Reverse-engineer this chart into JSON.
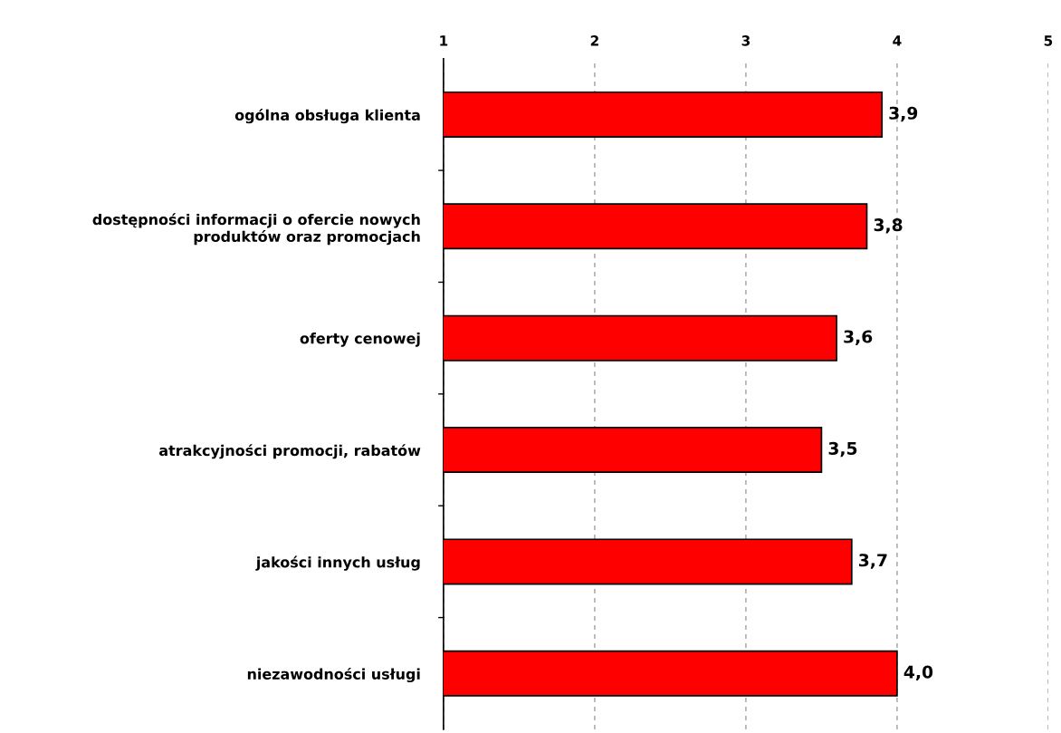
{
  "chart_data": {
    "type": "bar",
    "orientation": "horizontal",
    "categories": [
      "ogólna obsługa klienta",
      "dostępności informacji o ofercie nowych\nproduktów oraz promocjach",
      "oferty cenowej",
      "atrakcyjności promocji, rabatów",
      "jakości innych usług",
      "niezawodności usługi"
    ],
    "values": [
      3.9,
      3.8,
      3.6,
      3.5,
      3.7,
      4.0
    ],
    "value_labels": [
      "3,9",
      "3,8",
      "3,6",
      "3,5",
      "3,7",
      "4,0"
    ],
    "color": "#ff0000",
    "xlim": [
      1,
      5
    ],
    "xticks": [
      1,
      2,
      3,
      4,
      5
    ],
    "grid": "x",
    "legend": false
  }
}
